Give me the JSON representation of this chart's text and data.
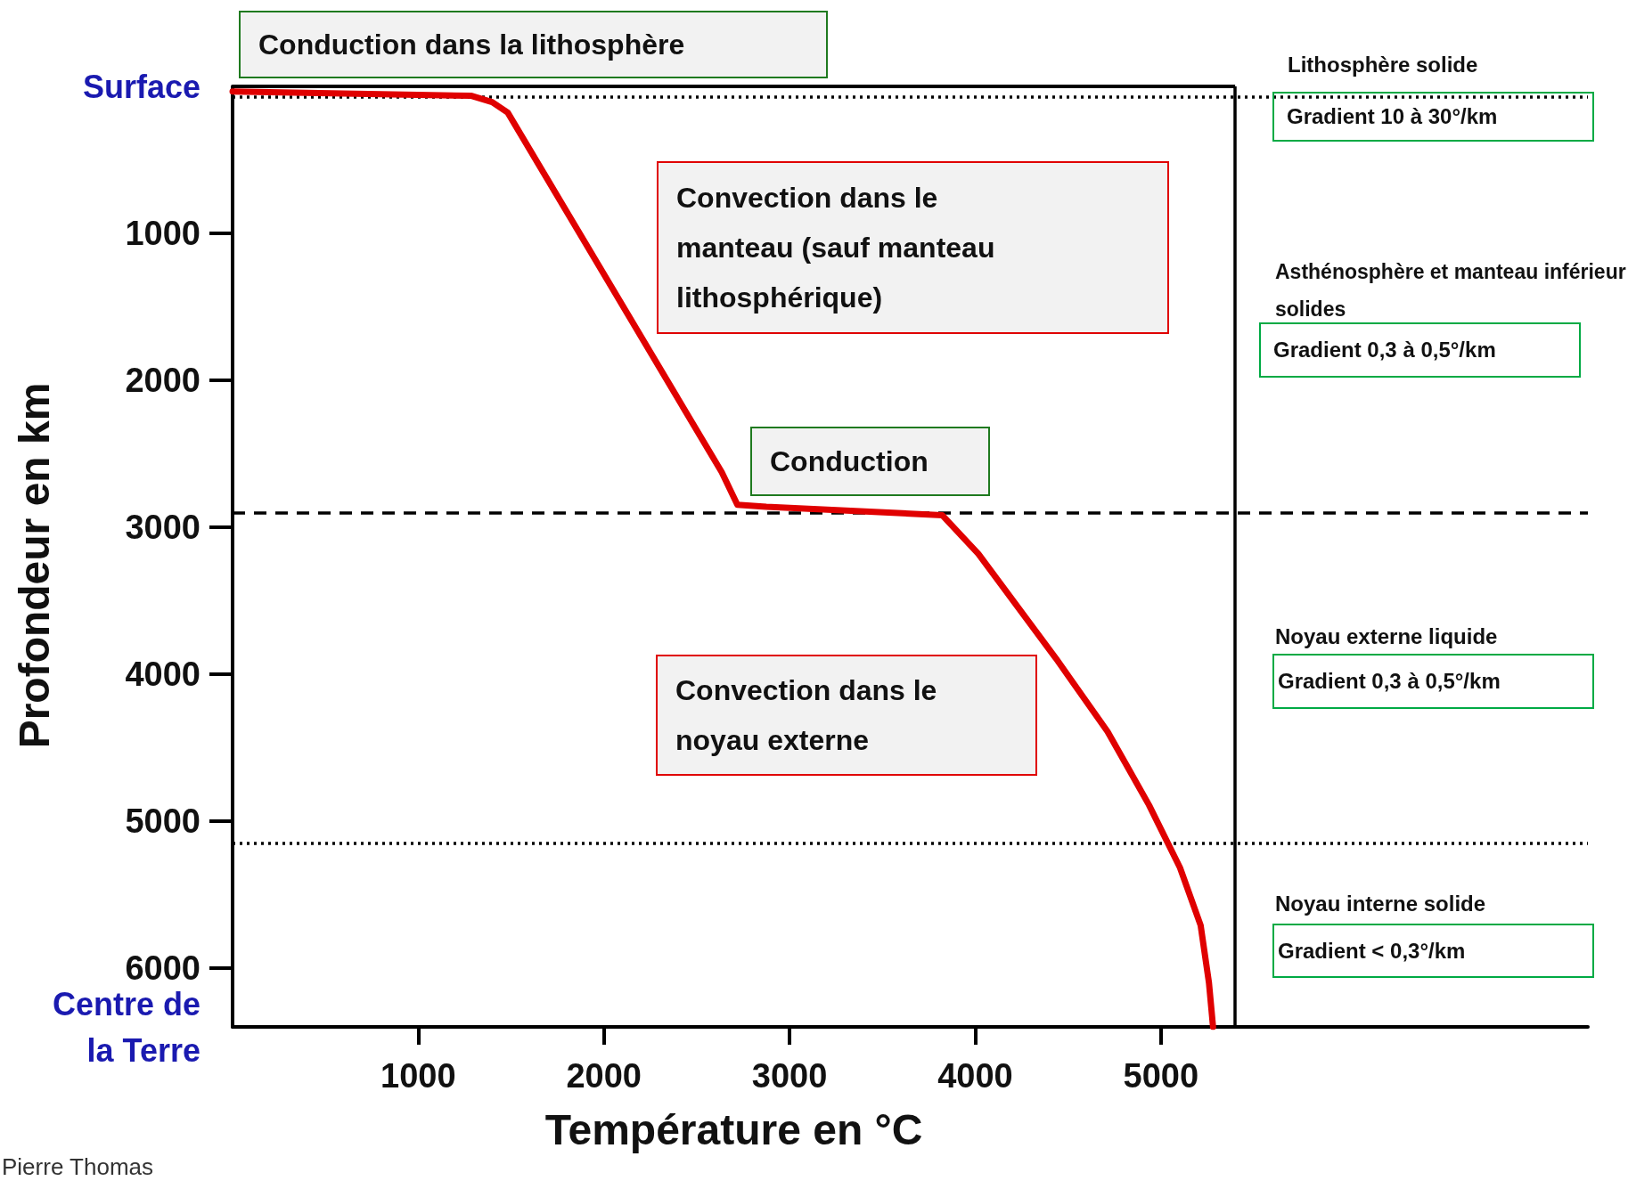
{
  "chart_data": {
    "type": "line",
    "xlabel": "Température en °C",
    "ylabel": "Profondeur en km",
    "x": [
      0,
      1287,
      1398,
      1482,
      2635,
      2719,
      2875,
      3822,
      4017,
      4435,
      4713,
      4936,
      5103,
      5214,
      5259,
      5281
    ],
    "series": [
      {
        "color": "#e00000",
        "values": [
          35,
          64,
          107,
          178,
          2626,
          2847,
          2861,
          2918,
          3181,
          3893,
          4391,
          4890,
          5317,
          5708,
          6100,
          6400
        ]
      }
    ],
    "xlim": [
      0,
      7300
    ],
    "xticks": [
      1000,
      2000,
      3000,
      4000,
      5000
    ],
    "ylim": [
      6400,
      0
    ],
    "yticks": [
      {
        "value": 0,
        "label": "Surface"
      },
      1000,
      2000,
      3000,
      4000,
      5000,
      6000,
      {
        "value": 6400,
        "label": "Centre de la Terre"
      }
    ],
    "grid": false,
    "ref_lines": [
      {
        "axis": "x",
        "value": 5400,
        "line_style": "solid",
        "color": "#000000"
      },
      {
        "axis": "y",
        "value": 70,
        "line_style": "dotted",
        "color": "#000000"
      },
      {
        "axis": "y",
        "value": 2900,
        "line_style": "dashed",
        "color": "#000000"
      },
      {
        "axis": "y",
        "value": 5150,
        "line_style": "dotted",
        "color": "#000000"
      }
    ],
    "annotations": [
      "Conduction dans la lithosphère",
      "Convection dans le manteau (sauf manteau lithosphérique)",
      "Conduction",
      "Convection dans le noyau externe",
      "Lithosphère solide",
      "Gradient 10 à 30°/km",
      "Asthénosphère et manteau inférieur solides",
      "Gradient 0,3 à 0,5°/km",
      "Noyau externe liquide",
      "Gradient 0,3 à 0,5°/km",
      "Noyau interne solide",
      "Gradient < 0,3°/km",
      "Pierre Thomas"
    ]
  }
}
